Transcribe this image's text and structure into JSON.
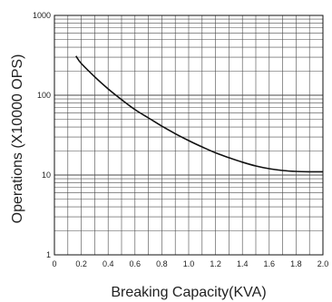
{
  "chart_data": {
    "type": "line",
    "xlabel": "Breaking Capacity(KVA)",
    "ylabel": "Operations (X10000 OPS)",
    "x_scale": "linear",
    "y_scale": "log",
    "xlim": [
      0,
      2.0
    ],
    "ylim": [
      1,
      1000
    ],
    "grid": true,
    "x_ticks": [
      "0",
      "0.2",
      "0.4",
      "0.6",
      "0.8",
      "1.0",
      "1.2",
      "1.4",
      "1.6",
      "1.8",
      "2.0"
    ],
    "y_ticks": [
      {
        "value": 1,
        "label": "1"
      },
      {
        "value": 10,
        "label": "10"
      },
      {
        "value": 100,
        "label": "100"
      },
      {
        "value": 1000,
        "label": "1000"
      }
    ],
    "series": [
      {
        "x": [
          0.16,
          0.2,
          0.3,
          0.4,
          0.5,
          0.6,
          0.7,
          0.8,
          0.9,
          1.0,
          1.1,
          1.2,
          1.3,
          1.4,
          1.5,
          1.6,
          1.7,
          1.8,
          1.9,
          2.0
        ],
        "y": [
          310,
          250,
          170,
          120,
          88,
          66,
          52,
          41,
          33,
          27,
          22.5,
          19,
          16.5,
          14.5,
          13,
          12,
          11.4,
          11.1,
          11,
          11
        ]
      }
    ],
    "colors": {
      "line": "#111111",
      "grid": "#4a4a4a",
      "frame": "#111111"
    }
  }
}
